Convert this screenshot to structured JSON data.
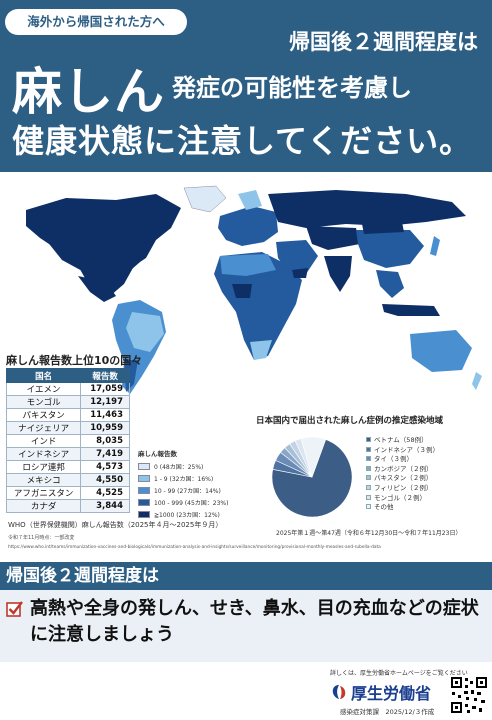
{
  "header": {
    "tag": "海外から帰国された方へ",
    "line1": "帰国後２週間程度は",
    "disease": "麻しん",
    "line2": "発症の可能性を考慮し",
    "line3": "健康状態に注意してください。"
  },
  "table": {
    "title": "麻しん報告数上位10の国々",
    "col_country": "国名",
    "col_count": "報告数",
    "rows": [
      {
        "country": "イエメン",
        "count": "17,059"
      },
      {
        "country": "モンゴル",
        "count": "12,197"
      },
      {
        "country": "パキスタン",
        "count": "11,463"
      },
      {
        "country": "ナイジェリア",
        "count": "10,959"
      },
      {
        "country": "インド",
        "count": "8,035"
      },
      {
        "country": "インドネシア",
        "count": "7,419"
      },
      {
        "country": "ロシア連邦",
        "count": "4,573"
      },
      {
        "country": "メキシコ",
        "count": "4,550"
      },
      {
        "country": "アフガニスタン",
        "count": "4,525"
      },
      {
        "country": "カナダ",
        "count": "3,844"
      }
    ]
  },
  "map_legend": {
    "title": "麻しん報告数",
    "items": [
      {
        "label": "0 (48カ国：25%)",
        "color": "#dbe9f6"
      },
      {
        "label": "1 - 9 (32カ国：16%)",
        "color": "#8ec4ea"
      },
      {
        "label": "10 - 99 (27カ国：14%)",
        "color": "#4a8fd0"
      },
      {
        "label": "100 - 999 (45カ国：23%)",
        "color": "#235b9e"
      },
      {
        "label": "≧1000 (23カ国：12%)",
        "color": "#0e2f66"
      }
    ]
  },
  "pie": {
    "title": "日本国内で届出された麻しん症例の推定感染地域",
    "note": "2025年第１週〜第47週（令和６年12月30日〜令和７年11月23日）",
    "chart_data": {
      "type": "pie",
      "categories": [
        "ベトナム",
        "インドネシア",
        "タイ",
        "カンボジア",
        "パキスタン",
        "フィリピン",
        "モンゴル",
        "その他"
      ],
      "values": [
        58,
        3,
        3,
        2,
        2,
        2,
        2,
        8
      ],
      "labels": [
        "ベトナム（58例）",
        "インドネシア（３例）",
        "タイ（３例）",
        "カンボジア（２例）",
        "パキスタン（２例）",
        "フィリピン（２例）",
        "モンゴル（２例）",
        "その他"
      ],
      "colors": [
        "#3c5e86",
        "#4f73a0",
        "#6a8cb6",
        "#8aa7c8",
        "#a8bfd8",
        "#c3d3e5",
        "#dbe5f0",
        "#eef3f8"
      ]
    }
  },
  "source": {
    "line1": "WHO（世界保健機関）麻しん報告数（2025年４月〜2025年９月）",
    "line2": "令和７年11月時点：一部改変",
    "url": "https://www.who.int/teams/immunization-vaccines-and-biologicals/immunization-analysis-and-insights/surveillance/monitoring/provisional-monthly-measles-and-rubella-data"
  },
  "band": {
    "title": "帰国後２週間程度は",
    "body": "高熱や全身の発しん、せき、鼻水、目の充血などの症状に注意しましょう"
  },
  "footer": {
    "note": "詳しくは、厚生労働省ホームページをご覧ください",
    "ministry": "厚生労働省",
    "id": "感染症対策課　2025/12/３作成"
  },
  "colors": {
    "brand": "#2d5f85",
    "ocean": "#ffffff",
    "land_dark": "#0e2f66"
  }
}
